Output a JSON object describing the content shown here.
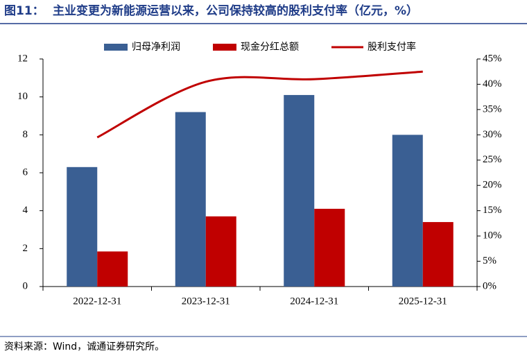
{
  "chart_data": {
    "type": "bar-line",
    "figure_label": "图11：",
    "title": "主业变更为新能源运营以来，公司保持较高的股利支付率（亿元，%）",
    "categories": [
      "2022-12-31",
      "2023-12-31",
      "2024-12-31",
      "2025-12-31"
    ],
    "series": [
      {
        "name": "归母净利润",
        "color": "#3a5f93",
        "type": "bar",
        "values": [
          6.3,
          9.2,
          10.1,
          8.0
        ]
      },
      {
        "name": "现金分红总额",
        "color": "#c00000",
        "type": "bar",
        "values": [
          1.85,
          3.7,
          4.1,
          3.4
        ]
      },
      {
        "name": "股利支付率",
        "color": "#c00000",
        "type": "line",
        "axis": "y2",
        "values": [
          29.5,
          40.5,
          41,
          42.5
        ]
      }
    ],
    "ylim": [
      0,
      12
    ],
    "yticks": [
      0,
      2,
      4,
      6,
      8,
      10,
      12
    ],
    "y2lim": [
      0,
      45
    ],
    "y2ticks": [
      {
        "value": 0,
        "label": "0%"
      },
      {
        "value": 5,
        "label": "5%"
      },
      {
        "value": 10,
        "label": "10%"
      },
      {
        "value": 15,
        "label": "15%"
      },
      {
        "value": 20,
        "label": "20%"
      },
      {
        "value": 25,
        "label": "25%"
      },
      {
        "value": 30,
        "label": "30%"
      },
      {
        "value": 35,
        "label": "35%"
      },
      {
        "value": 40,
        "label": "40%"
      },
      {
        "value": 45,
        "label": "45%"
      }
    ],
    "grid": false,
    "legend": "top",
    "source": "资料来源：Wind，诚通证券研究所。"
  }
}
